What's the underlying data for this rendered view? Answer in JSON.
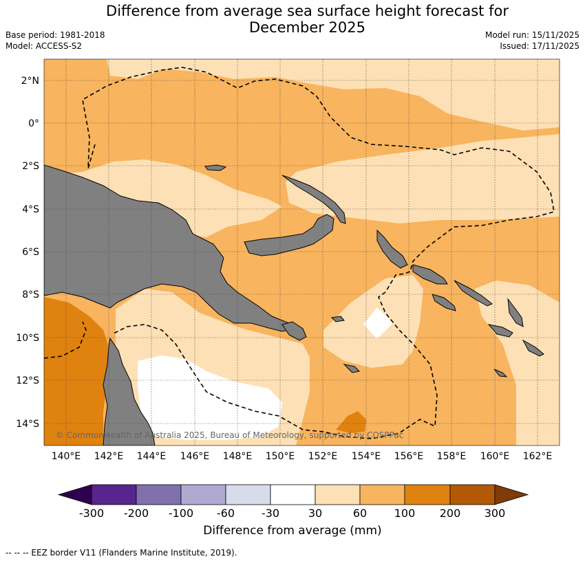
{
  "title": "Difference from average sea surface height forecast for December 2025",
  "title_line1": "Difference from average sea surface height forecast for",
  "title_line2": "December 2025",
  "base_period": "Base period: 1981-2018",
  "model": "Model: ACCESS-S2",
  "model_run": "Model run: 15/11/2025",
  "issued": "Issued: 17/11/2025",
  "map": {
    "lat_ticks": [
      "2°N",
      "0°",
      "2°S",
      "4°S",
      "6°S",
      "8°S",
      "10°S",
      "12°S",
      "14°S"
    ],
    "lon_ticks": [
      "140°E",
      "142°E",
      "144°E",
      "146°E",
      "148°E",
      "150°E",
      "152°E",
      "154°E",
      "156°E",
      "158°E",
      "160°E",
      "162°E"
    ],
    "copyright": "© Commonwealth of Australia 2025, Bureau of Meteorology, supported by COSPPac",
    "colors": {
      "land": "#808080",
      "c30_60": "#fde0b5",
      "c60_100": "#f8b45e",
      "c100_200": "#e0820f",
      "c_neg30_30": "#ffffff",
      "eez": "#000000"
    }
  },
  "colorbar": {
    "labels": [
      "-300",
      "-200",
      "-100",
      "-60",
      "-30",
      "30",
      "60",
      "100",
      "200",
      "300"
    ],
    "colors": [
      "#2e004d",
      "#58248e",
      "#8070ae",
      "#b0a9d2",
      "#d8dbea",
      "#ffffff",
      "#fde0b5",
      "#f8b45e",
      "#e0820f",
      "#b35906",
      "#7f3b08"
    ],
    "title": "Difference from average (mm)"
  },
  "footnote": "--  --  -- EEZ border V11 (Flanders Marine Institute, 2019)."
}
